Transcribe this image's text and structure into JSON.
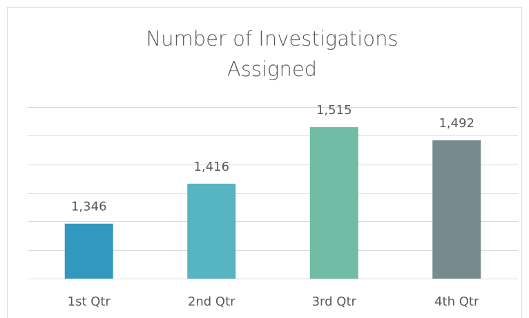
{
  "chart_data": {
    "type": "bar",
    "title": [
      "Number of Investigations",
      "Assigned"
    ],
    "categories": [
      "1st Qtr",
      "2nd Qtr",
      "3rd Qtr",
      "4th Qtr"
    ],
    "values": [
      1346,
      1416,
      1515,
      1492
    ],
    "value_labels": [
      "1,346",
      "1,416",
      "1,515",
      "1,492"
    ],
    "colors": [
      "#3398bf",
      "#56b5c0",
      "#72bca6",
      "#778b8e"
    ],
    "ylim": [
      1250,
      1550
    ],
    "yticks": [
      1250,
      1300,
      1350,
      1400,
      1450,
      1500,
      1550
    ],
    "grid": true
  }
}
